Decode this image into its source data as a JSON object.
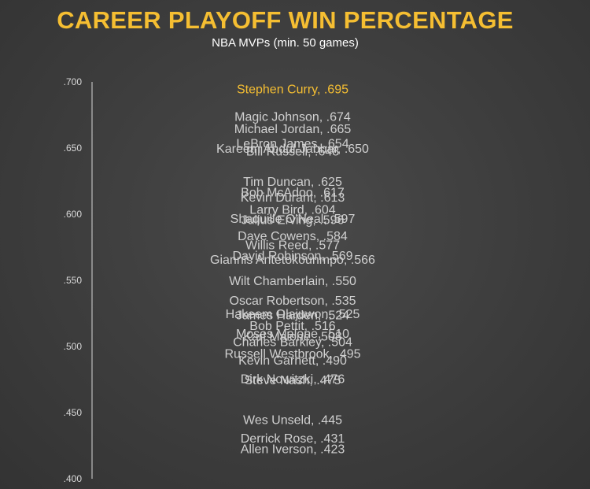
{
  "title": "CAREER PLAYOFF WIN PERCENTAGE",
  "subtitle": "NBA MVPs (min. 50 games)",
  "chart_data": {
    "type": "scatter",
    "title": "CAREER PLAYOFF WIN PERCENTAGE",
    "subtitle": "NBA MVPs (min. 50 games)",
    "ylim": [
      0.4,
      0.7
    ],
    "yticks": [
      ".700",
      ".650",
      ".600",
      ".550",
      ".500",
      ".450",
      ".400"
    ],
    "ytick_values": [
      0.7,
      0.65,
      0.6,
      0.55,
      0.5,
      0.45,
      0.4
    ],
    "grid": false,
    "highlight_color": "#f5be32",
    "points": [
      {
        "name": "Stephen Curry",
        "value": 0.695,
        "label": "Stephen Curry, .695",
        "highlight": true
      },
      {
        "name": "Magic Johnson",
        "value": 0.674,
        "label": "Magic Johnson, .674"
      },
      {
        "name": "Michael Jordan",
        "value": 0.665,
        "label": "Michael Jordan, .665"
      },
      {
        "name": "LeBron James",
        "value": 0.654,
        "label": "LeBron James, .654"
      },
      {
        "name": "Kareem Abdul-Jabbar",
        "value": 0.65,
        "label": "Kareem Abdul-Jabbar, .650"
      },
      {
        "name": "Bill Russell",
        "value": 0.648,
        "label": "Bill Russell, .648"
      },
      {
        "name": "Tim Duncan",
        "value": 0.625,
        "label": "Tim Duncan, .625"
      },
      {
        "name": "Bob McAdoo",
        "value": 0.617,
        "label": "Bob McAdoo, .617"
      },
      {
        "name": "Kevin Durant",
        "value": 0.613,
        "label": "Kevin Durant, .613"
      },
      {
        "name": "Larry Bird",
        "value": 0.604,
        "label": "Larry Bird, .604"
      },
      {
        "name": "Shaquille O'Neal",
        "value": 0.597,
        "label": "Shaquille O'Neal, .597"
      },
      {
        "name": "Julius Erving",
        "value": 0.596,
        "label": "Julius Erving, .596"
      },
      {
        "name": "Dave Cowens",
        "value": 0.584,
        "label": "Dave Cowens, .584"
      },
      {
        "name": "Willis Reed",
        "value": 0.577,
        "label": "Willis Reed, .577"
      },
      {
        "name": "David Robinson",
        "value": 0.569,
        "label": "David Robinson, .569"
      },
      {
        "name": "Giannis Antetokounmpo",
        "value": 0.566,
        "label": "Giannis Antetokounmpo, .566"
      },
      {
        "name": "Wilt Chamberlain",
        "value": 0.55,
        "label": "Wilt Chamberlain, .550"
      },
      {
        "name": "Oscar Robertson",
        "value": 0.535,
        "label": "Oscar Robertson, .535"
      },
      {
        "name": "Hakeem Olajuwon",
        "value": 0.525,
        "label": "Hakeem Olajuwon, .525"
      },
      {
        "name": "James Harden",
        "value": 0.524,
        "label": "James Harden, .524"
      },
      {
        "name": "Bob Pettit",
        "value": 0.516,
        "label": "Bob Pettit, .516"
      },
      {
        "name": "Moses Malone",
        "value": 0.51,
        "label": "Moses Malone, .510"
      },
      {
        "name": "Karl Malone",
        "value": 0.508,
        "label": "Karl Malone, .508"
      },
      {
        "name": "Charles Barkley",
        "value": 0.504,
        "label": "Charles Barkley, .504"
      },
      {
        "name": "Russell Westbrook",
        "value": 0.495,
        "label": "Russell Westbrook, .495"
      },
      {
        "name": "Kevin Garnett",
        "value": 0.49,
        "label": "Kevin Garnett, .490"
      },
      {
        "name": "Dirk Nowitzki",
        "value": 0.476,
        "label": "Dirk Nowitzki, .476"
      },
      {
        "name": "Steve Nash",
        "value": 0.475,
        "label": "Steve Nash, .475"
      },
      {
        "name": "Wes Unseld",
        "value": 0.445,
        "label": "Wes Unseld, .445"
      },
      {
        "name": "Derrick Rose",
        "value": 0.431,
        "label": "Derrick Rose, .431"
      },
      {
        "name": "Allen Iverson",
        "value": 0.423,
        "label": "Allen Iverson, .423"
      }
    ]
  }
}
